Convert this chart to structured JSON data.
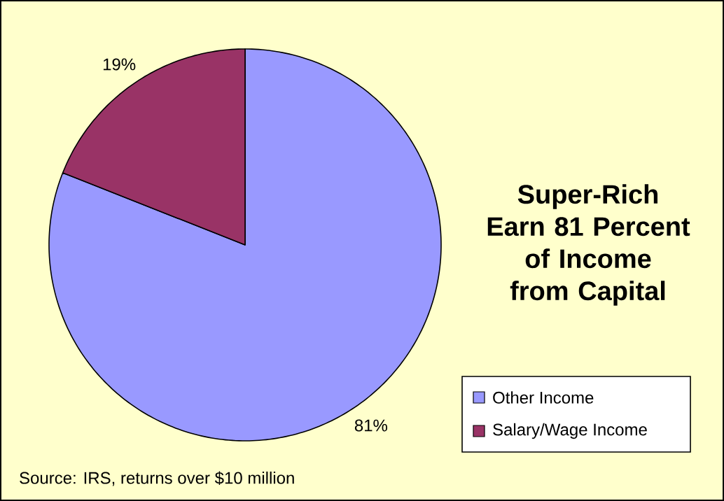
{
  "chart_data": {
    "type": "pie",
    "title": "Super-Rich Earn 81 Percent of Income from Capital",
    "categories": [
      "Other Income",
      "Salary/Wage Income"
    ],
    "values": [
      81,
      19
    ],
    "colors": [
      "#9999ff",
      "#993366"
    ],
    "value_labels": [
      "81%",
      "19%"
    ],
    "legend": "bottom right",
    "annotations": [
      "Source: IRS, returns over $10 million"
    ]
  }
}
